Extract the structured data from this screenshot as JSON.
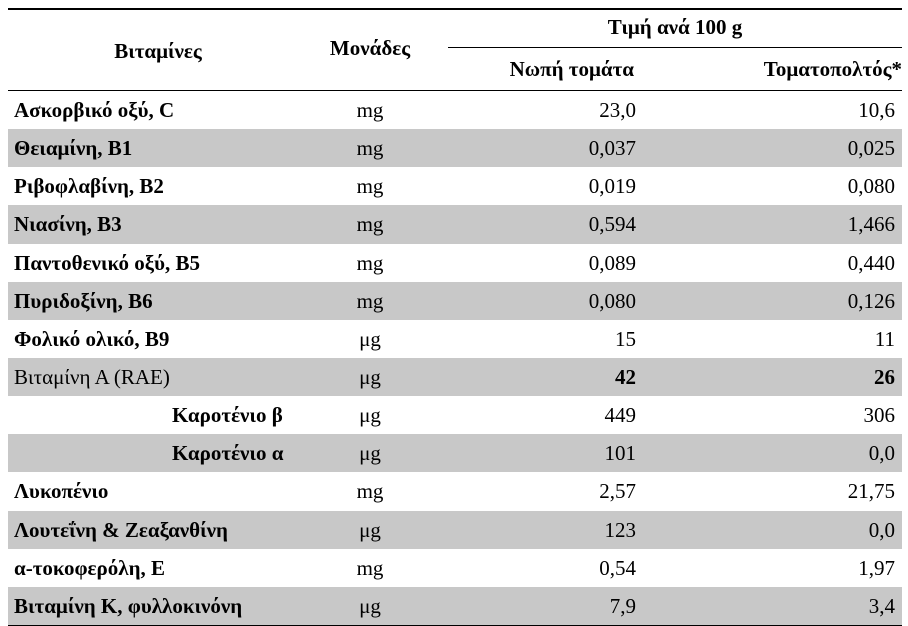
{
  "header": {
    "vitamins": "Βιταμίνες",
    "units": "Μονάδες",
    "value_group": "Τιμή ανά 100 g",
    "fresh_tomato": "Νωπή τομάτα",
    "tomato_paste": "Τοματοπολτός*"
  },
  "rows": [
    {
      "name": "Ασκορβικό οξύ, C",
      "unit": "mg",
      "fresh": "23,0",
      "paste": "10,6"
    },
    {
      "name": "Θειαμίνη, Β1",
      "unit": "mg",
      "fresh": "0,037",
      "paste": "0,025"
    },
    {
      "name": "Ριβοφλαβίνη, Β2",
      "unit": "mg",
      "fresh": "0,019",
      "paste": "0,080"
    },
    {
      "name": "Νιασίνη, Β3",
      "unit": "mg",
      "fresh": "0,594",
      "paste": "1,466"
    },
    {
      "name": "Παντοθενικό οξύ, Β5",
      "unit": "mg",
      "fresh": "0,089",
      "paste": "0,440"
    },
    {
      "name": "Πυριδοξίνη, Β6",
      "unit": "mg",
      "fresh": "0,080",
      "paste": "0,126"
    },
    {
      "name": "Φολικό ολικό, Β9",
      "unit": "μg",
      "fresh": "15",
      "paste": "11"
    },
    {
      "name": "Βιταμίνη Α (RAE)",
      "unit": "μg",
      "fresh": "42",
      "paste": "26"
    },
    {
      "name": "Καροτένιο β",
      "unit": "μg",
      "fresh": "449",
      "paste": "306"
    },
    {
      "name": "Καροτένιο α",
      "unit": "μg",
      "fresh": "101",
      "paste": "0,0"
    },
    {
      "name": "Λυκοπένιο",
      "unit": "mg",
      "fresh": "2,57",
      "paste": "21,75"
    },
    {
      "name": "Λουτεΐνη & Ζεαξανθίνη",
      "unit": "μg",
      "fresh": "123",
      "paste": "0,0"
    },
    {
      "name": "α-τοκοφερόλη, Ε",
      "unit": "mg",
      "fresh": "0,54",
      "paste": "1,97"
    },
    {
      "name": "Βιταμίνη Κ, φυλλοκινόνη",
      "unit": "μg",
      "fresh": "7,9",
      "paste": "3,4"
    }
  ]
}
